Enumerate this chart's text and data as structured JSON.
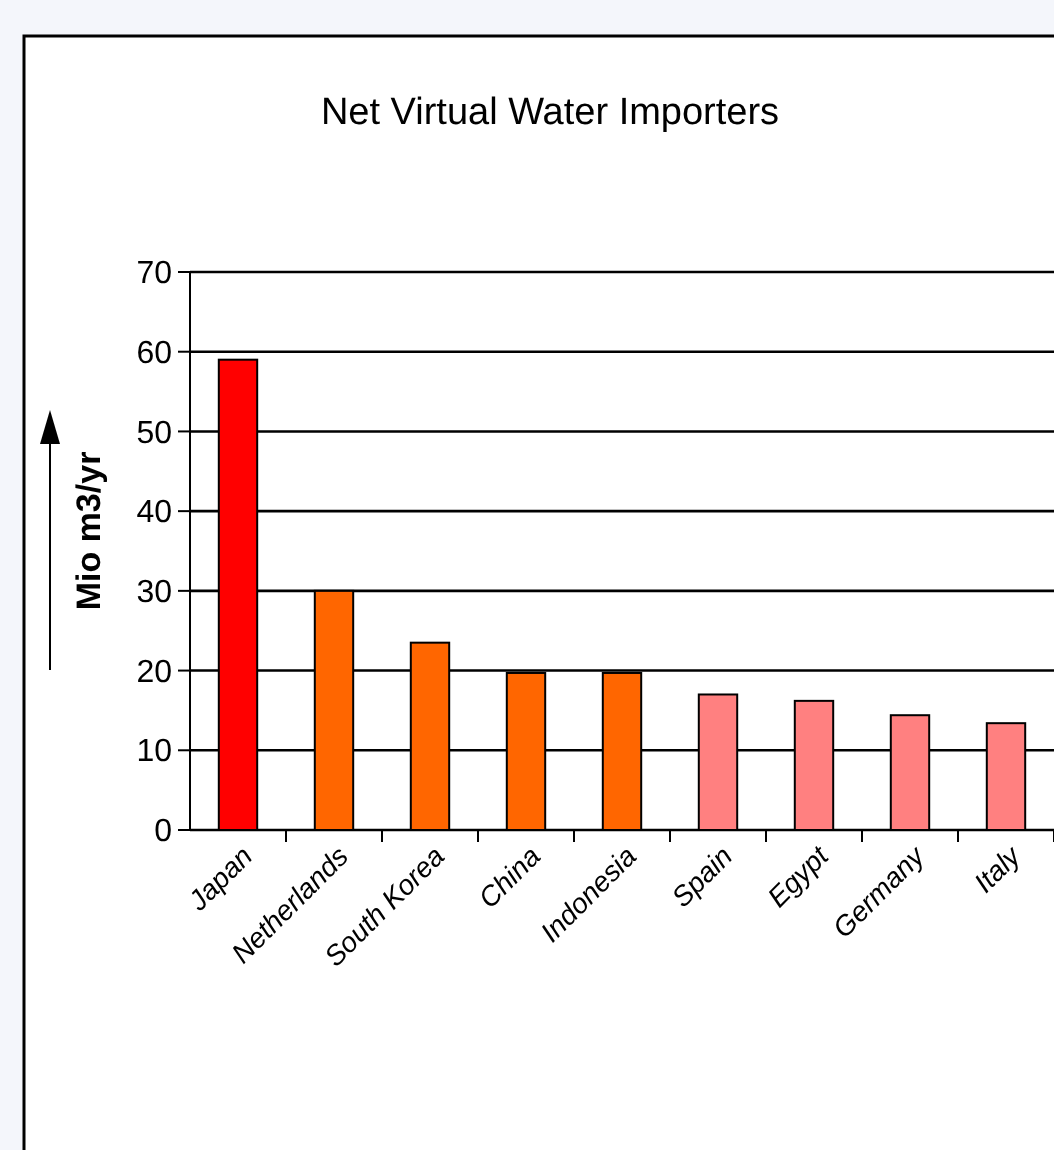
{
  "chart_data": {
    "type": "bar",
    "title": "Net Virtual Water Importers",
    "ylabel": "Mio m3/yr",
    "categories": [
      "Japan",
      "Netherlands",
      "South Korea",
      "China",
      "Indonesia",
      "Spain",
      "Egypt",
      "Germany",
      "Italy"
    ],
    "values": [
      59,
      30,
      23.5,
      19.7,
      19.7,
      17,
      16.2,
      14.4,
      13.4
    ],
    "colors": [
      "#ff0000",
      "#ff6600",
      "#ff6600",
      "#ff6600",
      "#ff6600",
      "#ff8080",
      "#ff8080",
      "#ff8080",
      "#ff8080"
    ],
    "ylim": [
      0,
      70
    ],
    "yticks": [
      0,
      10,
      20,
      30,
      40,
      50,
      60,
      70
    ],
    "grid": "y"
  }
}
